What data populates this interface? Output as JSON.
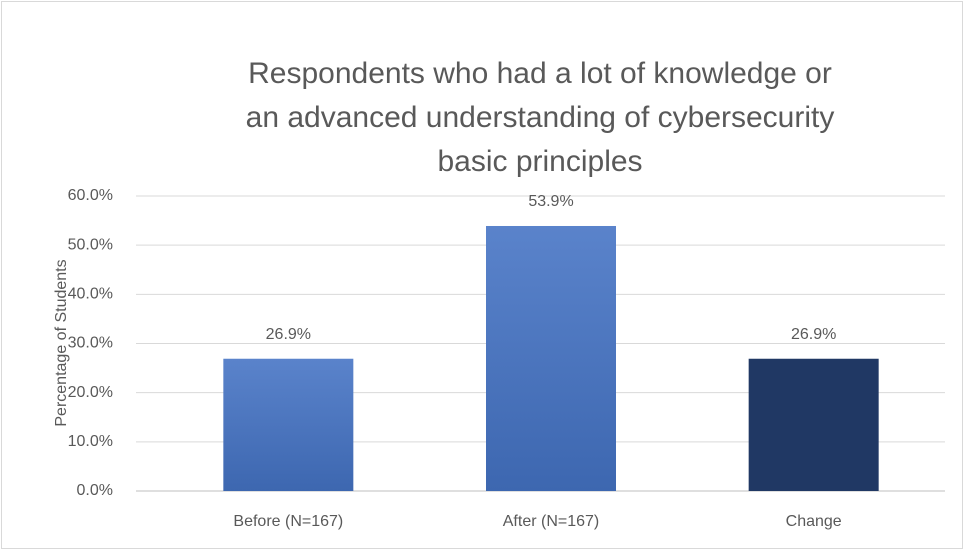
{
  "chart_data": {
    "type": "bar",
    "title": "Respondents who had a lot of knowledge  or an advanced understanding of cybersecurity basic principles",
    "y_label": "Percentage of Students",
    "categories": [
      "Before (N=167)",
      "After (N=167)",
      "Change"
    ],
    "values": [
      26.9,
      53.9,
      26.9
    ],
    "value_labels": [
      "26.9%",
      "53.9%",
      "26.9%"
    ],
    "colors": [
      "#4472c4",
      "#4472c4",
      "#203864"
    ],
    "ylim": [
      0,
      60
    ],
    "yticks": [
      {
        "value": 0,
        "label": "0.0%"
      },
      {
        "value": 10,
        "label": "10.0%"
      },
      {
        "value": 20,
        "label": "20.0%"
      },
      {
        "value": 30,
        "label": "30.0%"
      },
      {
        "value": 40,
        "label": "40.0%"
      },
      {
        "value": 50,
        "label": "50.0%"
      },
      {
        "value": 60,
        "label": "60.0%"
      }
    ],
    "grid": true
  }
}
